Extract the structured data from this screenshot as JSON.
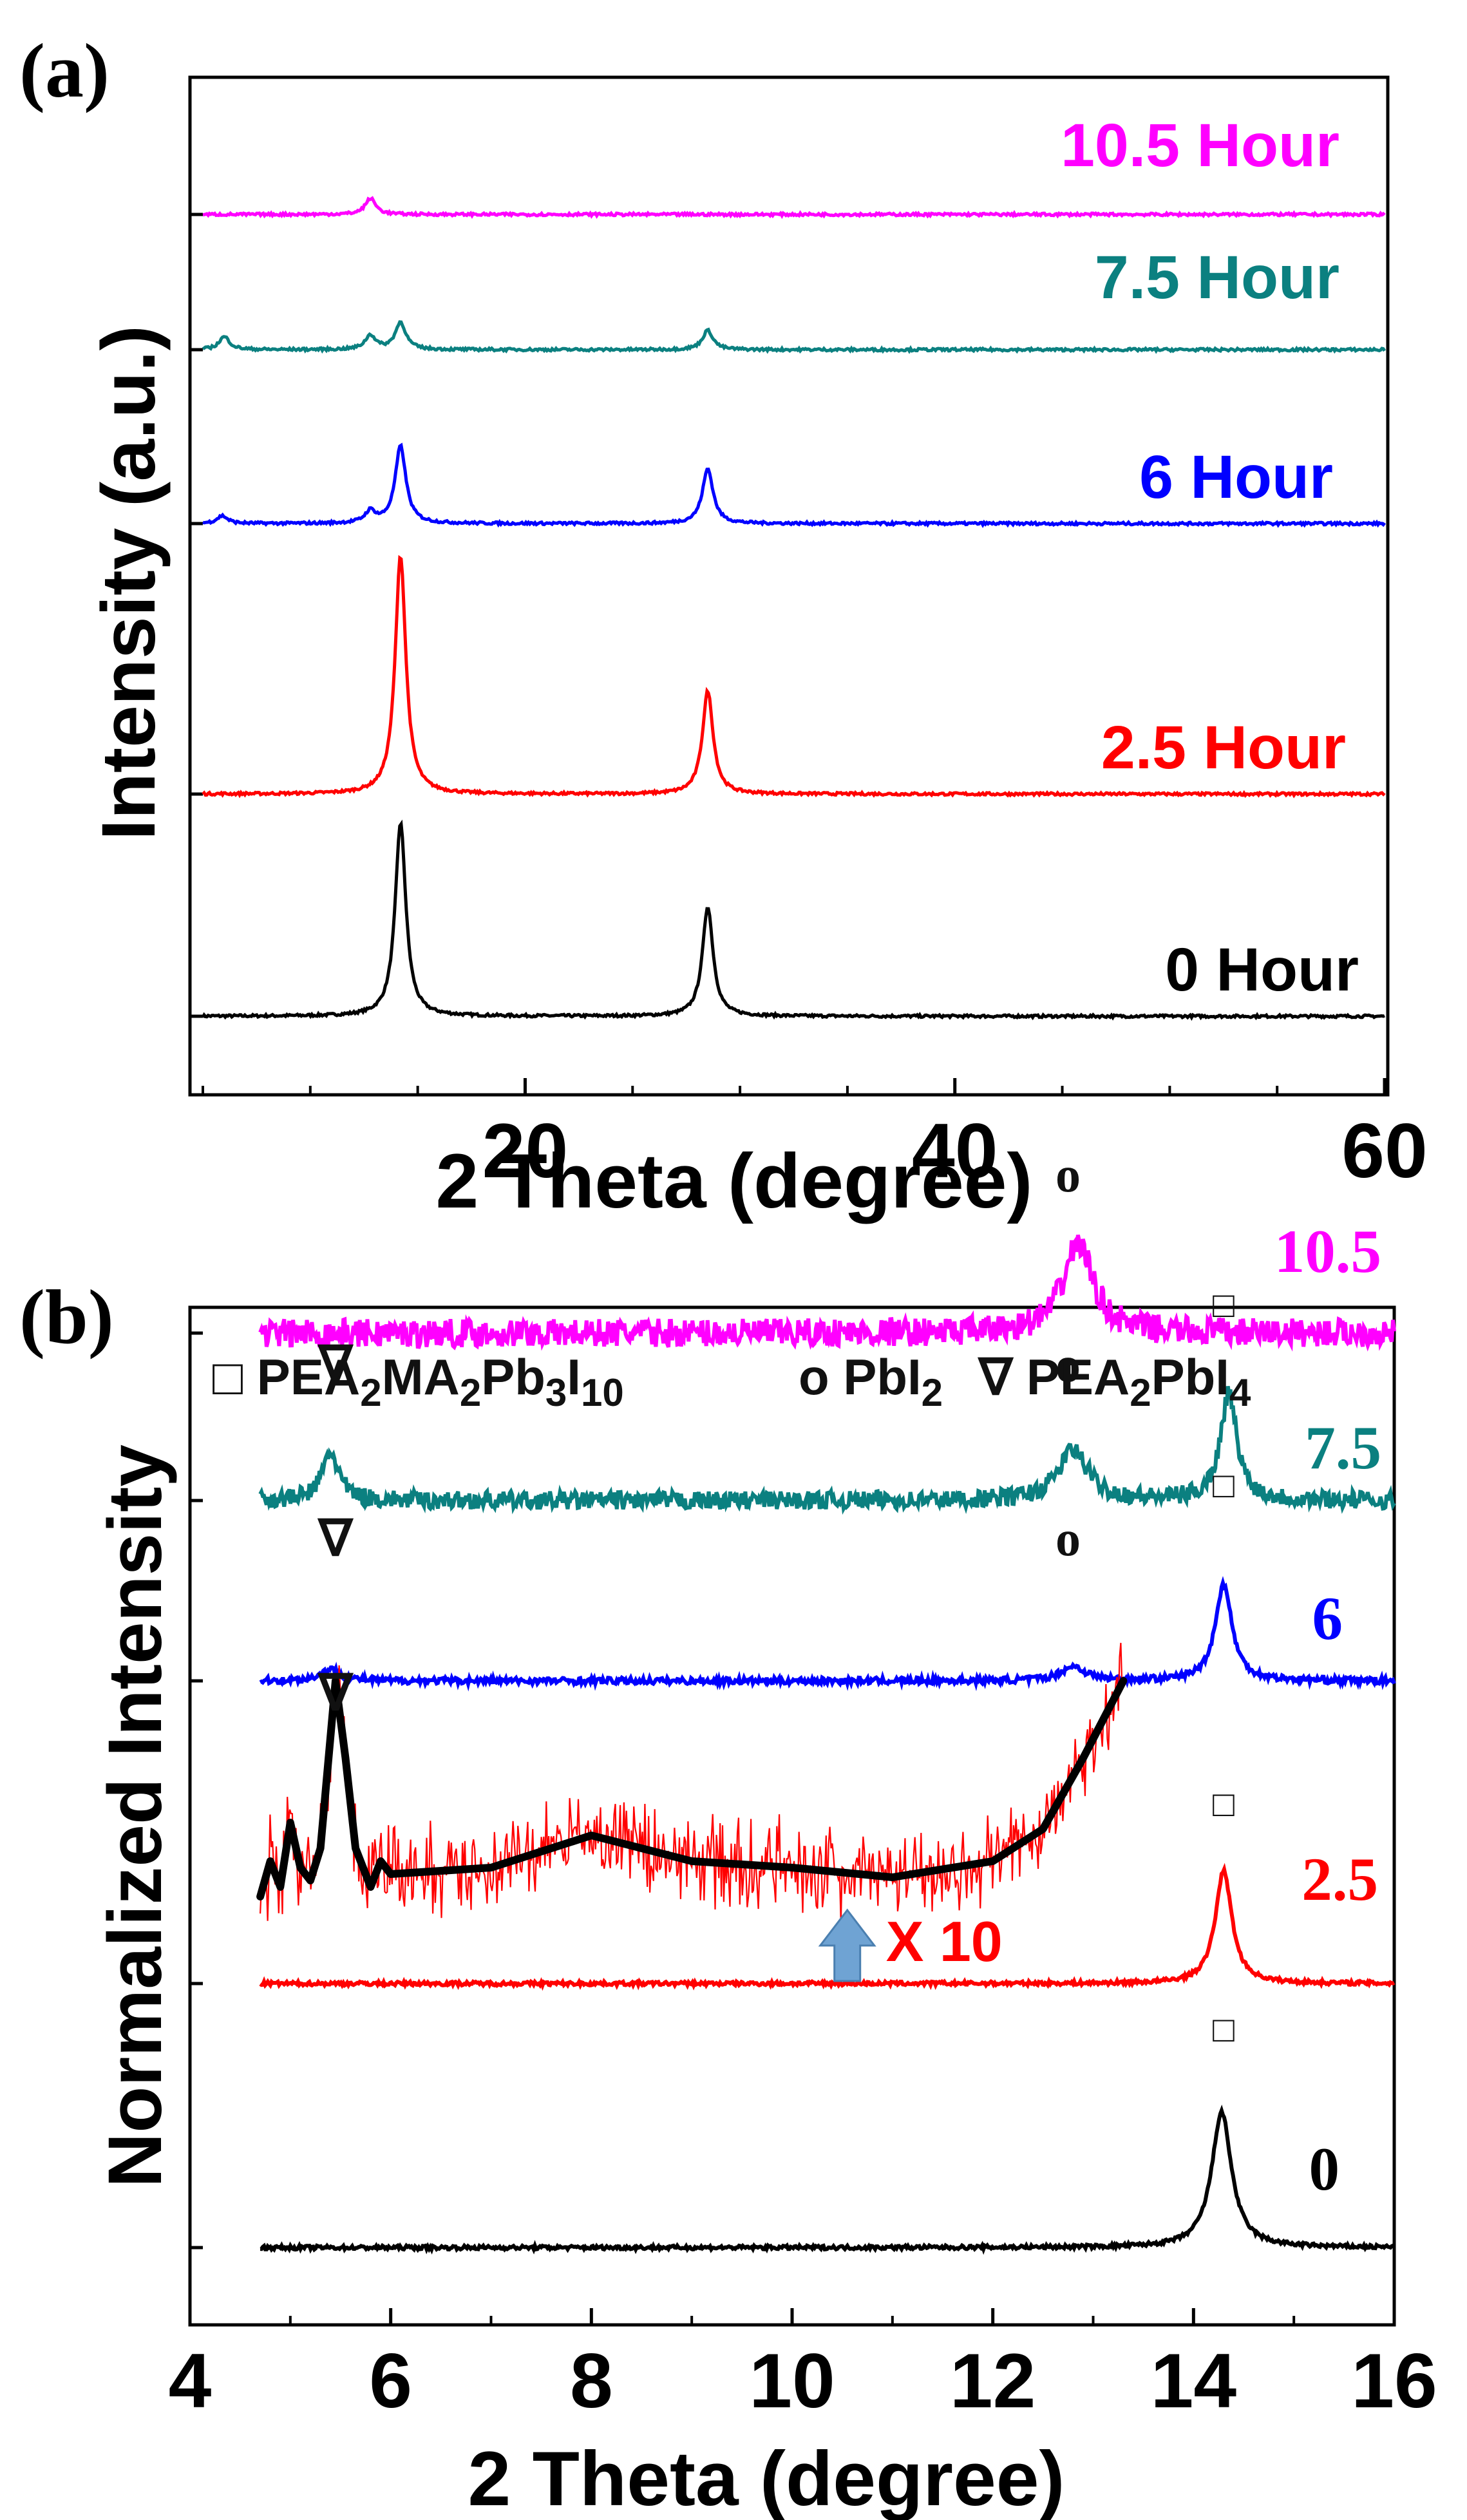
{
  "chart_data": [
    {
      "panel_label": "(a)",
      "type": "line",
      "xlabel": "2 Theta (degree)",
      "ylabel": "Intensity (a.u.)",
      "xlim": [
        5,
        60
      ],
      "xticks": [
        20,
        40,
        60
      ],
      "series": [
        {
          "name": "0 Hour",
          "label": "0 Hour",
          "color": "#000000",
          "baseline": 0,
          "peaks": [
            [
              14.2,
              300,
              0.3
            ],
            [
              28.5,
              170,
              0.3
            ]
          ]
        },
        {
          "name": "2.5 Hour",
          "label": "2.5 Hour",
          "color": "#ff0000",
          "baseline": 345,
          "peaks": [
            [
              14.2,
              370,
              0.3
            ],
            [
              28.5,
              160,
              0.3
            ]
          ]
        },
        {
          "name": "6 Hour",
          "label": "6 Hour",
          "color": "#0000ff",
          "baseline": 765,
          "peaks": [
            [
              14.2,
              120,
              0.3
            ],
            [
              28.5,
              85,
              0.3
            ],
            [
              12.8,
              18,
              0.3
            ],
            [
              5.9,
              12,
              0.3
            ]
          ]
        },
        {
          "name": "7.5 Hour",
          "label": "7.5 Hour",
          "color": "#0b8080",
          "baseline": 1035,
          "peaks": [
            [
              14.2,
              42,
              0.3
            ],
            [
              28.5,
              30,
              0.3
            ],
            [
              12.8,
              22,
              0.3
            ],
            [
              6.0,
              20,
              0.3
            ]
          ]
        },
        {
          "name": "10.5 Hour",
          "label": "10.5 Hour",
          "color": "#ff00ff",
          "baseline": 1245,
          "peaks": [
            [
              12.8,
              25,
              0.3
            ]
          ]
        }
      ]
    },
    {
      "panel_label": "(b)",
      "type": "line",
      "xlabel": "2 Theta (degree)",
      "ylabel": "Normalized Intensity",
      "xlim": [
        4,
        16
      ],
      "xticks": [
        4,
        6,
        8,
        10,
        12,
        14,
        16
      ],
      "legend": [
        {
          "marker": "□",
          "name": "PEA2MA2Pb3I10",
          "main": "PEA",
          "sub1": "2",
          "mid1": "MA",
          "sub2": "2",
          "mid2": "Pb",
          "sub3": "3",
          "mid3": "I",
          "sub4": "10"
        },
        {
          "marker": "o",
          "name": "PbI2",
          "main": "PbI",
          "sub1": "2"
        },
        {
          "marker": "∇",
          "name": "PEA2PbI4",
          "main": "PEA",
          "sub1": "2",
          "mid1": "PbI",
          "sub2": "4"
        }
      ],
      "series": [
        {
          "name": "0",
          "label": "0",
          "color": "#000000",
          "baseline": 0,
          "peaks": [
            [
              14.28,
              210,
              0.12
            ]
          ],
          "noise": 3
        },
        {
          "name": "2.5",
          "label": "2.5",
          "color": "#ff0000",
          "baseline": 410,
          "peaks": [
            [
              14.3,
              175,
              0.1
            ]
          ],
          "noise": 3
        },
        {
          "name": "6",
          "label": "6",
          "color": "#0000ff",
          "baseline": 880,
          "peaks": [
            [
              14.3,
              150,
              0.1
            ],
            [
              12.8,
              22,
              0.15
            ],
            [
              5.4,
              18,
              0.12
            ]
          ],
          "noise": 5
        },
        {
          "name": "7.5",
          "label": "7.5",
          "color": "#0b8080",
          "baseline": 1160,
          "peaks": [
            [
              14.35,
              165,
              0.1
            ],
            [
              12.8,
              78,
              0.18
            ],
            [
              5.4,
              75,
              0.1
            ]
          ],
          "noise": 14
        },
        {
          "name": "10.5",
          "label": "10.5",
          "color": "#ff00ff",
          "baseline": 1420,
          "peaks": [
            [
              12.85,
              140,
              0.18
            ]
          ],
          "noise": 22
        }
      ],
      "inset": {
        "label": "X 10",
        "color": "#ff0000",
        "x_range": [
          4.7,
          13.3
        ],
        "smooth": [
          [
            4.7,
            545
          ],
          [
            4.8,
            600
          ],
          [
            4.9,
            560
          ],
          [
            5.0,
            660
          ],
          [
            5.1,
            590
          ],
          [
            5.2,
            570
          ],
          [
            5.3,
            620
          ],
          [
            5.45,
            880
          ],
          [
            5.55,
            760
          ],
          [
            5.65,
            620
          ],
          [
            5.8,
            560
          ],
          [
            5.9,
            600
          ],
          [
            6.0,
            580
          ],
          [
            7.0,
            590
          ],
          [
            8.0,
            640
          ],
          [
            9.0,
            600
          ],
          [
            10.0,
            590
          ],
          [
            11.0,
            575
          ],
          [
            12.0,
            600
          ],
          [
            12.5,
            650
          ],
          [
            12.9,
            760
          ],
          [
            13.3,
            880
          ]
        ]
      },
      "markers": [
        {
          "symbol": "∇",
          "x": 5.45,
          "y": 1345
        },
        {
          "symbol": "∇",
          "x": 5.45,
          "y": 1075
        },
        {
          "symbol": "∇",
          "x": 5.45,
          "y": 835
        },
        {
          "symbol": "o",
          "x": 12.75,
          "y": 1640
        },
        {
          "symbol": "o",
          "x": 12.75,
          "y": 1345
        },
        {
          "symbol": "o",
          "x": 12.75,
          "y": 1075
        },
        {
          "symbol": "□",
          "x": 14.3,
          "y": 1445
        },
        {
          "symbol": "□",
          "x": 14.3,
          "y": 1165
        },
        {
          "symbol": "□",
          "x": 14.3,
          "y": 670
        },
        {
          "symbol": "□",
          "x": 14.3,
          "y": 320
        }
      ],
      "arrow_x": 10.55
    }
  ]
}
